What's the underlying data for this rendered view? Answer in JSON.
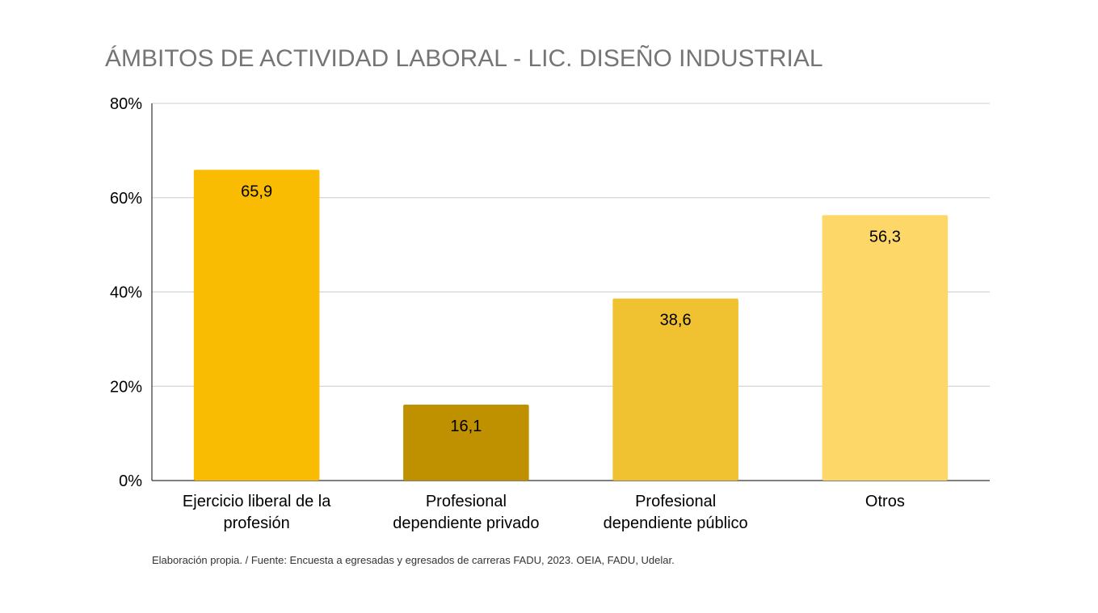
{
  "chart_data": {
    "type": "bar",
    "title": "ÁMBITOS DE ACTIVIDAD LABORAL - LIC. DISEÑO INDUSTRIAL",
    "xlabel": "",
    "ylabel": "",
    "categories": [
      [
        "Ejercicio liberal de la",
        "profesión"
      ],
      [
        "Profesional",
        "dependiente privado"
      ],
      [
        "Profesional",
        "dependiente público"
      ],
      [
        "Otros"
      ]
    ],
    "values": [
      65.9,
      16.1,
      38.6,
      56.3
    ],
    "data_labels": [
      "65,9",
      "16,1",
      "38,6",
      "56,3"
    ],
    "bar_colors": [
      "#F9BC02",
      "#BF9000",
      "#F0C232",
      "#FDD868"
    ],
    "ylim": [
      0,
      80
    ],
    "yticks": [
      0,
      20,
      40,
      60,
      80
    ],
    "ytick_labels": [
      "0%",
      "20%",
      "40%",
      "60%",
      "80%"
    ],
    "grid": true,
    "legend": "none",
    "source_note": "Elaboración propia. / Fuente: Encuesta a egresadas y egresados de carreras FADU, 2023. OEIA, FADU, Udelar."
  }
}
